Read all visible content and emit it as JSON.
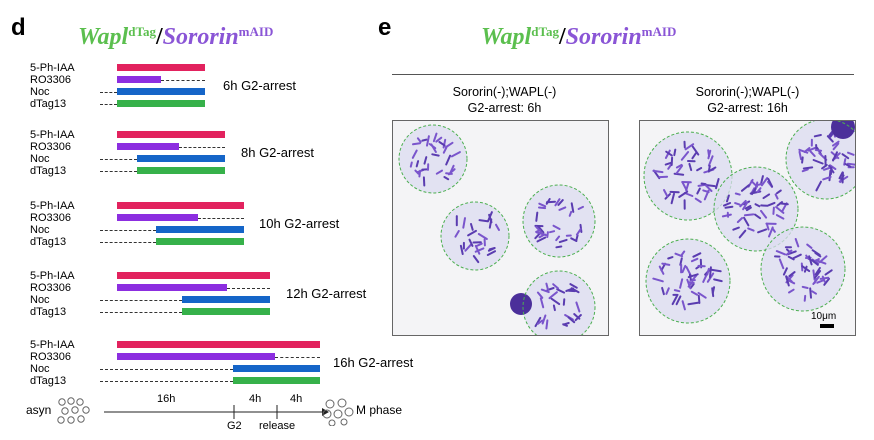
{
  "panel_d": {
    "letter": "d",
    "genotype": {
      "part1": "Wapl",
      "sup1": "dTag",
      "slash": "/",
      "part2": "Sororin",
      "sup2": "mAID"
    },
    "row_labels": [
      "5-Ph-IAA",
      "RO3306",
      "Noc",
      "dTag13"
    ],
    "groups": [
      {
        "label": "6h G2-arrest"
      },
      {
        "label": "8h G2-arrest"
      },
      {
        "label": "10h G2-arrest"
      },
      {
        "label": "12h G2-arrest"
      },
      {
        "label": "16h G2-arrest"
      }
    ],
    "timeline": {
      "start_label": "asyn",
      "end_label": "M phase",
      "seg1": "16h",
      "seg2": "4h",
      "seg3": "4h",
      "g2_label": "G2",
      "release_label": "release"
    },
    "colors": {
      "iaa": "#e2225e",
      "ro": "#8c2ee0",
      "noc": "#1565c8",
      "dtag": "#36b14a"
    }
  },
  "panel_e": {
    "letter": "e",
    "genotype": {
      "part1": "Wapl",
      "sup1": "dTag",
      "slash": "/",
      "part2": "Sororin",
      "sup2": "mAID"
    },
    "images": [
      {
        "title_line1": "Sororin(-);WAPL(-)",
        "title_line2": "G2-arrest: 6h"
      },
      {
        "title_line1": "Sororin(-);WAPL(-)",
        "title_line2": "G2-arrest: 16h",
        "scale_bar": "10μm"
      }
    ]
  }
}
